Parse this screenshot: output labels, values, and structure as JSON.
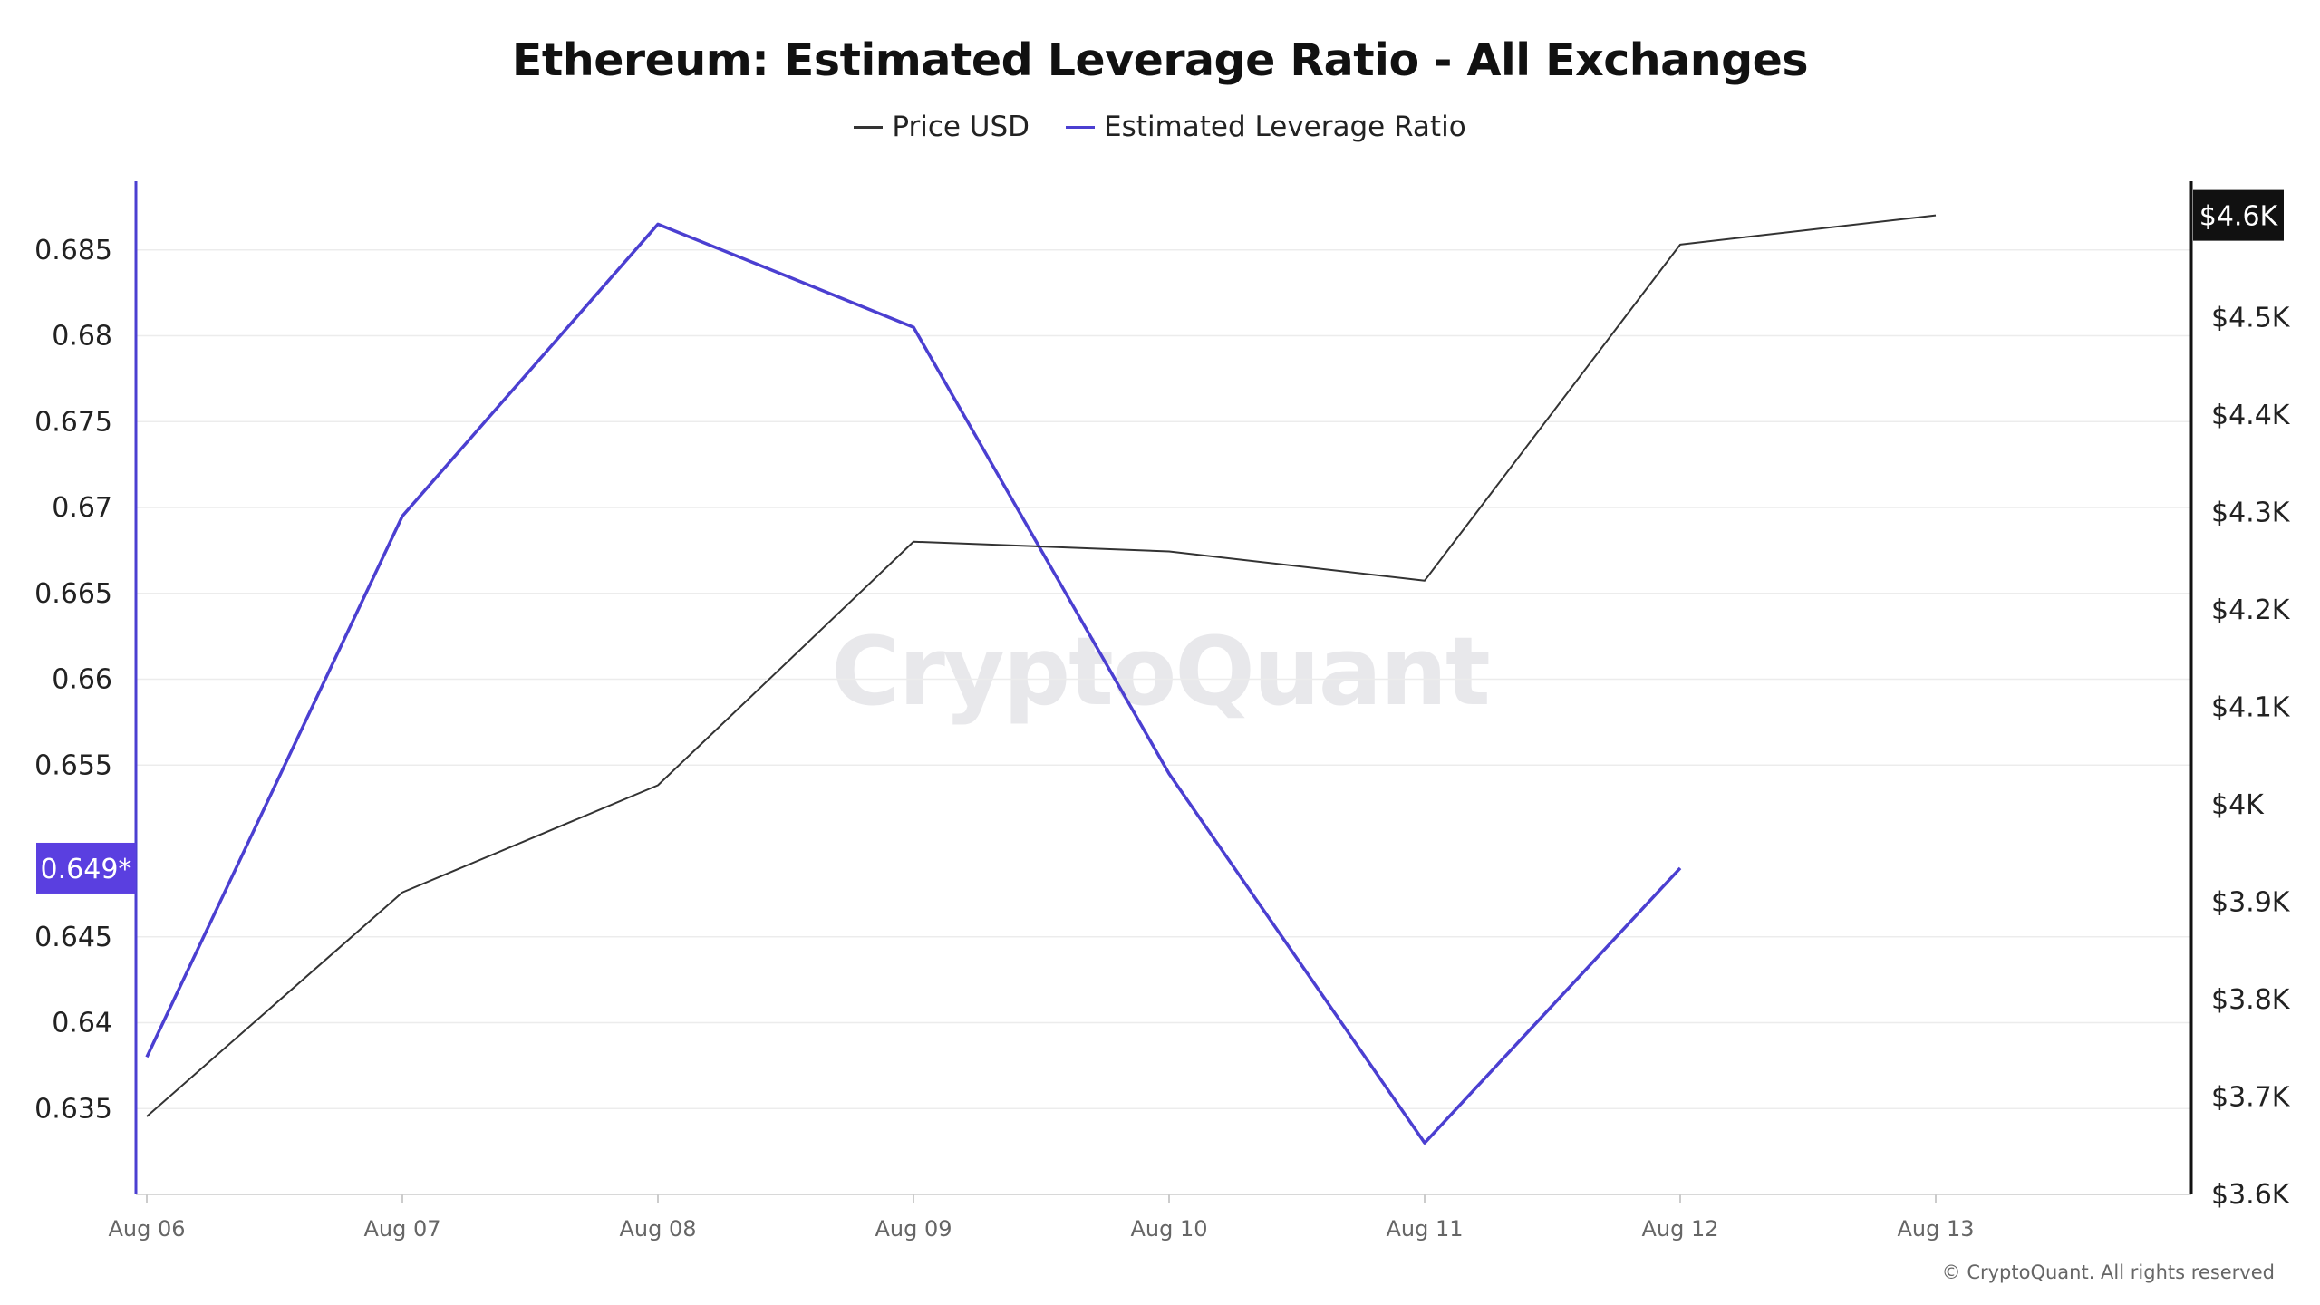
{
  "title": "Ethereum: Estimated Leverage Ratio - All Exchanges",
  "legend": {
    "price_label": "Price USD",
    "ratio_label": "Estimated Leverage Ratio"
  },
  "watermark": "CryptoQuant",
  "copyright": "© CryptoQuant. All rights reserved",
  "colors": {
    "price_line": "#333333",
    "ratio_line": "#4b3fd1",
    "ratio_badge": "#5a3fe0",
    "price_badge": "#111111",
    "grid": "#ececec"
  },
  "chart_data": {
    "type": "line",
    "title": "Ethereum: Estimated Leverage Ratio - All Exchanges",
    "categories": [
      "Aug 06",
      "Aug 07",
      "Aug 08",
      "Aug 09",
      "Aug 10",
      "Aug 11",
      "Aug 12",
      "Aug 13"
    ],
    "series": [
      {
        "name": "Estimated Leverage Ratio",
        "axis": "left",
        "values": [
          0.638,
          0.6695,
          0.6865,
          0.6805,
          0.6545,
          0.633,
          0.649,
          null
        ]
      },
      {
        "name": "Price USD",
        "axis": "right",
        "values": [
          3680,
          3910,
          4020,
          4270,
          4260,
          4230,
          4575,
          4605
        ]
      }
    ],
    "left_axis": {
      "ticks": [
        "0.635",
        "0.64",
        "0.645",
        "0.655",
        "0.66",
        "0.665",
        "0.67",
        "0.675",
        "0.68",
        "0.685"
      ],
      "tick_values": [
        0.635,
        0.64,
        0.645,
        0.655,
        0.66,
        0.665,
        0.67,
        0.675,
        0.68,
        0.685
      ],
      "range": [
        0.63,
        0.689
      ],
      "current_label": "0.649*",
      "current_value": 0.649
    },
    "right_axis": {
      "ticks": [
        "$3.6K",
        "$3.7K",
        "$3.8K",
        "$3.9K",
        "$4K",
        "$4.1K",
        "$4.2K",
        "$4.3K",
        "$4.4K",
        "$4.5K"
      ],
      "tick_values": [
        3600,
        3700,
        3800,
        3900,
        4000,
        4100,
        4200,
        4300,
        4400,
        4500
      ],
      "range": [
        3600,
        4640
      ],
      "current_label": "$4.6K",
      "current_value": 4605
    },
    "grid": true,
    "legend_position": "top-center"
  }
}
